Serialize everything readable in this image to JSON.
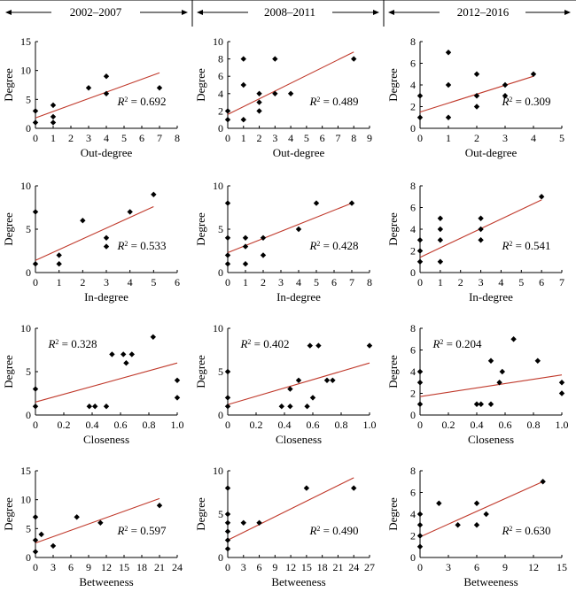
{
  "header": {
    "periods": [
      "2002–2007",
      "2008–2011",
      "2012–2016"
    ]
  },
  "colors": {
    "trend_line": "#c0392b",
    "points": "#000000",
    "axes": "#000000"
  },
  "chart_data": [
    {
      "type": "scatter",
      "row": 0,
      "col": 0,
      "xlabel": "Out-degree",
      "ylabel": "Degree",
      "xlim": [
        0,
        8
      ],
      "ylim": [
        0,
        15
      ],
      "xticks": [
        "0",
        "1",
        "2",
        "3",
        "4",
        "5",
        "6",
        "7",
        "8"
      ],
      "yticks": [
        "0",
        "5",
        "10",
        "15"
      ],
      "points": [
        [
          0,
          1
        ],
        [
          0,
          3
        ],
        [
          1,
          1
        ],
        [
          1,
          2
        ],
        [
          1,
          4
        ],
        [
          3,
          7
        ],
        [
          4,
          6
        ],
        [
          4,
          9
        ],
        [
          7,
          7
        ]
      ],
      "trend": [
        [
          0,
          1.8
        ],
        [
          7,
          9.6
        ]
      ],
      "r2": "0.692",
      "r2_position": "right"
    },
    {
      "type": "scatter",
      "row": 0,
      "col": 1,
      "xlabel": "Out-degree",
      "ylabel": "Degree",
      "xlim": [
        0,
        9
      ],
      "ylim": [
        0,
        10
      ],
      "xticks": [
        "0",
        "1",
        "2",
        "3",
        "4",
        "5",
        "6",
        "7",
        "8",
        "9"
      ],
      "yticks": [
        "0",
        "2",
        "4",
        "6",
        "8",
        "10"
      ],
      "points": [
        [
          0,
          1
        ],
        [
          0,
          2
        ],
        [
          1,
          1
        ],
        [
          1,
          5
        ],
        [
          1,
          8
        ],
        [
          2,
          2
        ],
        [
          2,
          3
        ],
        [
          2,
          4
        ],
        [
          3,
          4
        ],
        [
          3,
          8
        ],
        [
          4,
          4
        ],
        [
          8,
          8
        ]
      ],
      "trend": [
        [
          0,
          1.6
        ],
        [
          8,
          8.8
        ]
      ],
      "r2": "0.489",
      "r2_position": "right"
    },
    {
      "type": "scatter",
      "row": 0,
      "col": 2,
      "xlabel": "Out-degree",
      "ylabel": "Degree",
      "xlim": [
        0,
        5
      ],
      "ylim": [
        0,
        8
      ],
      "xticks": [
        "0",
        "1",
        "2",
        "3",
        "4",
        "5"
      ],
      "yticks": [
        "0",
        "2",
        "4",
        "6",
        "8"
      ],
      "points": [
        [
          0,
          1
        ],
        [
          0,
          3
        ],
        [
          1,
          1
        ],
        [
          1,
          4
        ],
        [
          1,
          7
        ],
        [
          2,
          2
        ],
        [
          2,
          3
        ],
        [
          2,
          5
        ],
        [
          3,
          3
        ],
        [
          3,
          4
        ],
        [
          4,
          5
        ]
      ],
      "trend": [
        [
          0,
          1.5
        ],
        [
          4,
          4.8
        ]
      ],
      "r2": "0.309",
      "r2_position": "right"
    },
    {
      "type": "scatter",
      "row": 1,
      "col": 0,
      "xlabel": "In-degree",
      "ylabel": "Degree",
      "xlim": [
        0,
        6
      ],
      "ylim": [
        0,
        10
      ],
      "xticks": [
        "0",
        "1",
        "2",
        "3",
        "4",
        "5",
        "6"
      ],
      "yticks": [
        "0",
        "5",
        "10"
      ],
      "points": [
        [
          0,
          1
        ],
        [
          0,
          7
        ],
        [
          1,
          1
        ],
        [
          1,
          2
        ],
        [
          2,
          6
        ],
        [
          3,
          3
        ],
        [
          3,
          4
        ],
        [
          4,
          7
        ],
        [
          5,
          9
        ]
      ],
      "trend": [
        [
          0,
          1.4
        ],
        [
          5,
          7.6
        ]
      ],
      "r2": "0.533",
      "r2_position": "right"
    },
    {
      "type": "scatter",
      "row": 1,
      "col": 1,
      "xlabel": "In-degree",
      "ylabel": "Degree",
      "xlim": [
        0,
        8
      ],
      "ylim": [
        0,
        10
      ],
      "xticks": [
        "0",
        "1",
        "2",
        "3",
        "4",
        "5",
        "6",
        "7",
        "8"
      ],
      "yticks": [
        "0",
        "5",
        "10"
      ],
      "points": [
        [
          0,
          1
        ],
        [
          0,
          2
        ],
        [
          0,
          4
        ],
        [
          0,
          8
        ],
        [
          1,
          1
        ],
        [
          1,
          3
        ],
        [
          1,
          4
        ],
        [
          2,
          2
        ],
        [
          2,
          4
        ],
        [
          4,
          5
        ],
        [
          5,
          8
        ],
        [
          7,
          8
        ]
      ],
      "trend": [
        [
          0,
          2.3
        ],
        [
          7,
          8.0
        ]
      ],
      "r2": "0.428",
      "r2_position": "right"
    },
    {
      "type": "scatter",
      "row": 1,
      "col": 2,
      "xlabel": "In-degree",
      "ylabel": "Degree",
      "xlim": [
        0,
        7
      ],
      "ylim": [
        0,
        8
      ],
      "xticks": [
        "0",
        "1",
        "2",
        "3",
        "4",
        "5",
        "6",
        "7"
      ],
      "yticks": [
        "0",
        "2",
        "4",
        "6",
        "8"
      ],
      "points": [
        [
          0,
          1
        ],
        [
          0,
          2
        ],
        [
          0,
          3
        ],
        [
          1,
          1
        ],
        [
          1,
          3
        ],
        [
          1,
          4
        ],
        [
          1,
          5
        ],
        [
          3,
          3
        ],
        [
          3,
          4
        ],
        [
          3,
          5
        ],
        [
          6,
          7
        ]
      ],
      "trend": [
        [
          0,
          1.4
        ],
        [
          6,
          6.7
        ]
      ],
      "r2": "0.541",
      "r2_position": "right"
    },
    {
      "type": "scatter",
      "row": 2,
      "col": 0,
      "xlabel": "Closeness",
      "ylabel": "Degree",
      "xlim": [
        0,
        1
      ],
      "ylim": [
        0,
        10
      ],
      "xticks": [
        "0",
        "0.2",
        "0.4",
        "0.6",
        "0.8",
        "1.0"
      ],
      "yticks": [
        "0",
        "5",
        "10"
      ],
      "points": [
        [
          0,
          1
        ],
        [
          0,
          3
        ],
        [
          0.38,
          1
        ],
        [
          0.42,
          1
        ],
        [
          0.5,
          1
        ],
        [
          0.54,
          7
        ],
        [
          0.62,
          7
        ],
        [
          0.64,
          6
        ],
        [
          0.68,
          7
        ],
        [
          0.83,
          9
        ],
        [
          1,
          4
        ],
        [
          1,
          2
        ]
      ],
      "trend": [
        [
          0,
          1.5
        ],
        [
          1,
          6.0
        ]
      ],
      "r2": "0.328",
      "r2_position": "left"
    },
    {
      "type": "scatter",
      "row": 2,
      "col": 1,
      "xlabel": "Closeness",
      "ylabel": "Degree",
      "xlim": [
        0,
        1
      ],
      "ylim": [
        0,
        10
      ],
      "xticks": [
        "0",
        "0.2",
        "0.4",
        "0.6",
        "0.8",
        "1.0"
      ],
      "yticks": [
        "0",
        "5",
        "10"
      ],
      "points": [
        [
          0,
          1
        ],
        [
          0,
          2
        ],
        [
          0,
          5
        ],
        [
          0.38,
          1
        ],
        [
          0.44,
          1
        ],
        [
          0.44,
          3
        ],
        [
          0.5,
          4
        ],
        [
          0.56,
          1
        ],
        [
          0.58,
          8
        ],
        [
          0.6,
          2
        ],
        [
          0.64,
          8
        ],
        [
          0.7,
          4
        ],
        [
          0.74,
          4
        ],
        [
          1,
          8
        ]
      ],
      "trend": [
        [
          0,
          1.2
        ],
        [
          1,
          6.0
        ]
      ],
      "r2": "0.402",
      "r2_position": "left"
    },
    {
      "type": "scatter",
      "row": 2,
      "col": 2,
      "xlabel": "Closeness",
      "ylabel": "Degree",
      "xlim": [
        0,
        1
      ],
      "ylim": [
        0,
        8
      ],
      "xticks": [
        "0",
        "0.2",
        "0.4",
        "0.6",
        "0.8",
        "1.0"
      ],
      "yticks": [
        "0",
        "2",
        "4",
        "6",
        "8"
      ],
      "points": [
        [
          0,
          1
        ],
        [
          0,
          3
        ],
        [
          0,
          4
        ],
        [
          0.4,
          1
        ],
        [
          0.43,
          1
        ],
        [
          0.5,
          1
        ],
        [
          0.5,
          5
        ],
        [
          0.56,
          3
        ],
        [
          0.58,
          4
        ],
        [
          0.66,
          7
        ],
        [
          0.83,
          5
        ],
        [
          1,
          3
        ],
        [
          1,
          2
        ]
      ],
      "trend": [
        [
          0,
          1.7
        ],
        [
          1,
          3.7
        ]
      ],
      "r2": "0.204",
      "r2_position": "left"
    },
    {
      "type": "scatter",
      "row": 3,
      "col": 0,
      "xlabel": "Betweeness",
      "ylabel": "Degree",
      "xlim": [
        0,
        24
      ],
      "ylim": [
        0,
        15
      ],
      "xticks": [
        "0",
        "3",
        "6",
        "9",
        "12",
        "15",
        "18",
        "21",
        "24"
      ],
      "yticks": [
        "0",
        "5",
        "10",
        "15"
      ],
      "points": [
        [
          0,
          1
        ],
        [
          0,
          3
        ],
        [
          0,
          7
        ],
        [
          1,
          4
        ],
        [
          3,
          2
        ],
        [
          7,
          7
        ],
        [
          11,
          6
        ],
        [
          21,
          9
        ]
      ],
      "trend": [
        [
          0,
          2.5
        ],
        [
          21,
          10.2
        ]
      ],
      "r2": "0.597",
      "r2_position": "right"
    },
    {
      "type": "scatter",
      "row": 3,
      "col": 1,
      "xlabel": "Betweeness",
      "ylabel": "Degree",
      "xlim": [
        0,
        27
      ],
      "ylim": [
        0,
        10
      ],
      "xticks": [
        "0",
        "3",
        "6",
        "9",
        "12",
        "15",
        "18",
        "21",
        "24",
        "27"
      ],
      "yticks": [
        "0",
        "5",
        "10"
      ],
      "points": [
        [
          0,
          1
        ],
        [
          0,
          2
        ],
        [
          0,
          3
        ],
        [
          0,
          4
        ],
        [
          0,
          5
        ],
        [
          0,
          8
        ],
        [
          3,
          4
        ],
        [
          6,
          4
        ],
        [
          15,
          8
        ],
        [
          24,
          8
        ]
      ],
      "trend": [
        [
          0,
          2.0
        ],
        [
          24,
          9.2
        ]
      ],
      "r2": "0.490",
      "r2_position": "right"
    },
    {
      "type": "scatter",
      "row": 3,
      "col": 2,
      "xlabel": "Betweeness",
      "ylabel": "Degree",
      "xlim": [
        0,
        15
      ],
      "ylim": [
        0,
        8
      ],
      "xticks": [
        "0",
        "3",
        "6",
        "9",
        "12",
        "15"
      ],
      "yticks": [
        "0",
        "2",
        "4",
        "6",
        "8"
      ],
      "points": [
        [
          0,
          1
        ],
        [
          0,
          2
        ],
        [
          0,
          3
        ],
        [
          0,
          4
        ],
        [
          2,
          5
        ],
        [
          4,
          3
        ],
        [
          6,
          3
        ],
        [
          6,
          5
        ],
        [
          7,
          4
        ],
        [
          13,
          7
        ]
      ],
      "trend": [
        [
          0,
          1.9
        ],
        [
          13,
          7.0
        ]
      ],
      "r2": "0.630",
      "r2_position": "right"
    }
  ]
}
